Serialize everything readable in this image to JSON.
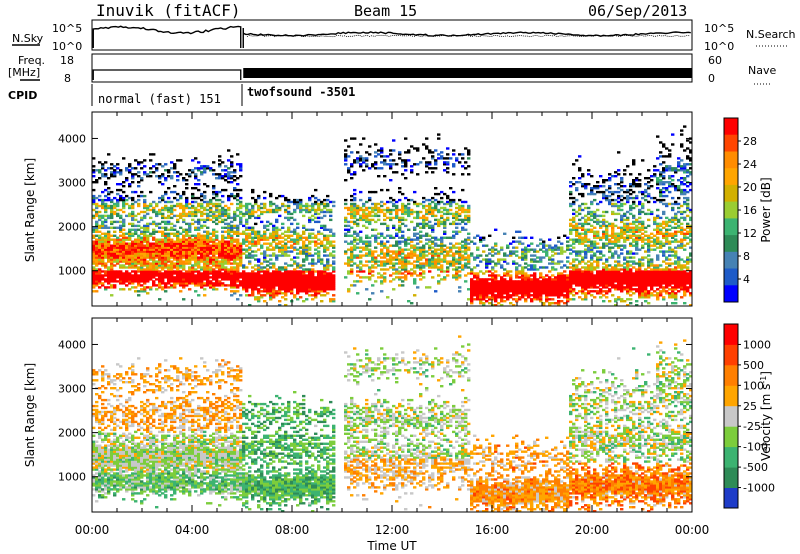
{
  "header": {
    "station": "Inuvik (fitACF)",
    "beam": "Beam 15",
    "date": "06/Sep/2013"
  },
  "top_panels": {
    "nsky_label": "N.Sky",
    "nsky_ticks": [
      "10^5",
      "10^0"
    ],
    "nsearch_label": "N.Search",
    "nsearch_ticks": [
      "10^5",
      "10^0"
    ],
    "freq_label_1": "Freq.",
    "freq_label_2": "[MHz]",
    "freq_ticks": [
      "18",
      "8"
    ],
    "nave_label": "Nave",
    "nave_ticks": [
      "60",
      "0"
    ],
    "cpid_label": "CPID",
    "cpid_segments": [
      {
        "label": "normal (fast) 151",
        "start_hr": 0.0,
        "end_hr": 6.0
      },
      {
        "label": "twofsound -3501",
        "start_hr": 6.0,
        "end_hr": 24.0
      }
    ]
  },
  "chart_data": [
    {
      "type": "heatmap",
      "quantity": "power",
      "ylabel": "Slant Range [km]",
      "xlabel": "Time UT",
      "xlim_hr": [
        0,
        24
      ],
      "ylim": [
        200,
        4600
      ],
      "y_ticks": [
        1000,
        2000,
        3000,
        4000
      ],
      "x_tick_labels": [
        "00:00",
        "04:00",
        "08:00",
        "12:00",
        "16:00",
        "20:00",
        "00:00"
      ],
      "colorbar_label": "Power [dB]",
      "colorbar_ticks": [
        "28",
        "24",
        "20",
        "16",
        "12",
        "8",
        "4"
      ],
      "colorbar_colors": [
        "#ff0000",
        "#ff4500",
        "#ff8c00",
        "#ffa500",
        "#d2b000",
        "#9acd32",
        "#3cb371",
        "#2e8b57",
        "#4682b4",
        "#1e5bc8",
        "#0000ff"
      ]
    },
    {
      "type": "heatmap",
      "quantity": "velocity",
      "ylabel": "Slant Range [km]",
      "xlabel": "Time UT",
      "xlim_hr": [
        0,
        24
      ],
      "ylim": [
        200,
        4600
      ],
      "y_ticks": [
        1000,
        2000,
        3000,
        4000
      ],
      "x_tick_labels": [
        "00:00",
        "04:00",
        "08:00",
        "12:00",
        "16:00",
        "20:00",
        "00:00"
      ],
      "colorbar_label": "Velocity [m s",
      "colorbar_label_sup": "-1",
      "colorbar_label_end": "]",
      "colorbar_ticks": [
        "1000",
        "500",
        "100",
        "25",
        "-25",
        "-100",
        "-500",
        "-1000"
      ],
      "colorbar_colors": [
        "#1e3cc8",
        "#2e8b57",
        "#3cb371",
        "#7ccd3c",
        "#c8c8c8",
        "#ffa500",
        "#ff7f00",
        "#ff4000",
        "#ff0000"
      ]
    }
  ],
  "time_axis_label": "Time UT"
}
